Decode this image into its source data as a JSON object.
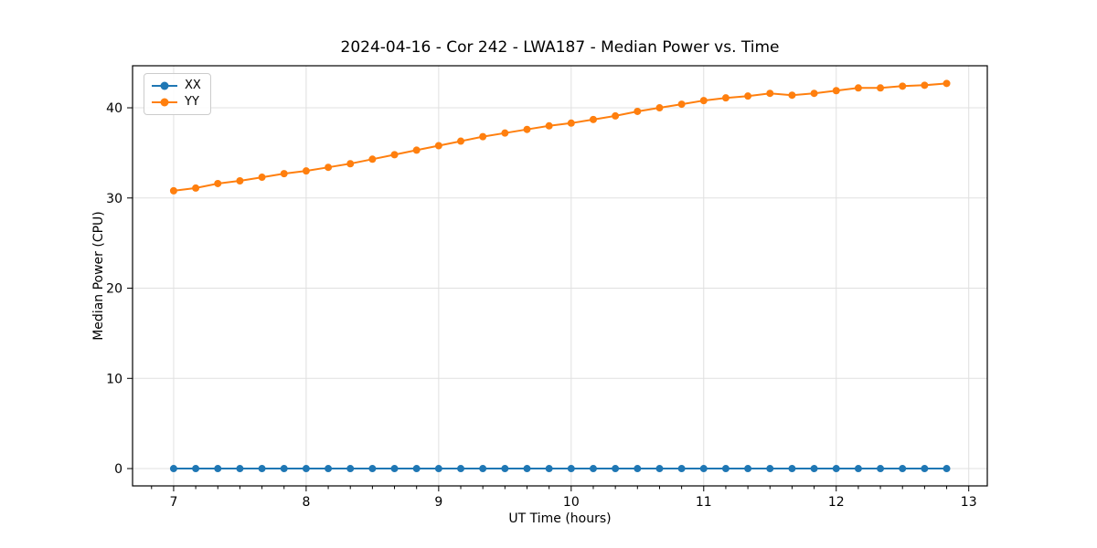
{
  "window": {
    "background_color": "#ffffff"
  },
  "chart_data": {
    "type": "line",
    "title": "2024-04-16 - Cor 242 - LWA187 - Median Power vs. Time",
    "xlabel": "UT Time (hours)",
    "ylabel": "Median Power (CPU)",
    "grid": true,
    "legend_position": "upper-left",
    "marker": "circle",
    "xlim": [
      6.69,
      13.14
    ],
    "ylim": [
      -1.92,
      44.66
    ],
    "xticks": [
      7,
      8,
      9,
      10,
      11,
      12,
      13
    ],
    "yticks": [
      0,
      10,
      20,
      30,
      40
    ],
    "minor_xtick_step_hours": 0.1667,
    "x": [
      7.0,
      7.1667,
      7.3333,
      7.5,
      7.6667,
      7.8333,
      8.0,
      8.1667,
      8.3333,
      8.5,
      8.6667,
      8.8333,
      9.0,
      9.1667,
      9.3333,
      9.5,
      9.6667,
      9.8333,
      10.0,
      10.1667,
      10.3333,
      10.5,
      10.6667,
      10.8333,
      11.0,
      11.1667,
      11.3333,
      11.5,
      11.6667,
      11.8333,
      12.0,
      12.1667,
      12.3333,
      12.5,
      12.6667,
      12.8333
    ],
    "series": [
      {
        "name": "XX",
        "color": "#1f77b4",
        "values": [
          0,
          0,
          0,
          0,
          0,
          0,
          0,
          0,
          0,
          0,
          0,
          0,
          0,
          0,
          0,
          0,
          0,
          0,
          0,
          0,
          0,
          0,
          0,
          0,
          0,
          0,
          0,
          0,
          0,
          0,
          0,
          0,
          0,
          0,
          0,
          0
        ]
      },
      {
        "name": "YY",
        "color": "#ff7f0e",
        "values": [
          30.8,
          31.1,
          31.6,
          31.9,
          32.3,
          32.7,
          33.0,
          33.4,
          33.8,
          34.3,
          34.8,
          35.3,
          35.8,
          36.3,
          36.8,
          37.2,
          37.6,
          38.0,
          38.3,
          38.7,
          39.1,
          39.6,
          40.0,
          40.4,
          40.8,
          41.1,
          41.3,
          41.6,
          41.4,
          41.6,
          41.9,
          42.2,
          42.2,
          42.4,
          42.5,
          42.7
        ]
      }
    ],
    "style": {
      "grid_color": "#e0e0e0",
      "spine_color": "#000000",
      "line_width": 2,
      "marker_radius": 4
    }
  }
}
